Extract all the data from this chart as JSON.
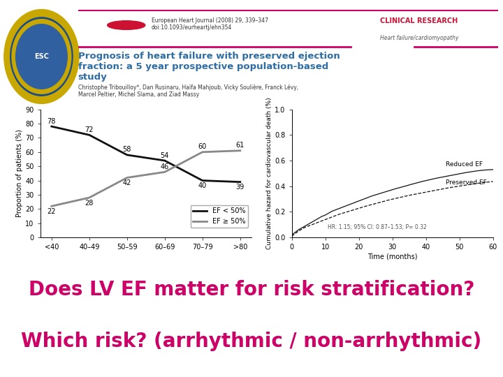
{
  "bg_color": "#ffffff",
  "header_line_color": "#cc0066",
  "journal_text": "European Heart Journal (2008) 29, 339–347\ndoi:10.1093/eurheartj/ehn354",
  "clinical_research_text": "CLINICAL RESEARCH\nHeart failure/cardiomyopathy",
  "title_text": "Prognosis of heart failure with preserved ejection\nfraction: a 5 year prospective population-based\nstudy",
  "title_color": "#2e6da4",
  "authors_text": "Christophe Tribouilloy*, Dan Rusinaru, Haïfa Mahjoub, Vicky Soulière, Franck Lévy,\nMarcel Peltier, Michel Slama, and Ziad Massy",
  "left_chart": {
    "ylabel": "Proportion of patients (%)",
    "xlabels": [
      "<40",
      "40–49",
      "50–59",
      "60–69",
      "70–79",
      ">80"
    ],
    "ylim": [
      0,
      90
    ],
    "yticks": [
      0,
      10,
      20,
      30,
      40,
      50,
      60,
      70,
      80,
      90
    ],
    "ef_lt50_values": [
      78,
      72,
      58,
      54,
      40,
      39
    ],
    "ef_ge50_values": [
      22,
      28,
      42,
      46,
      60,
      61
    ],
    "ef_lt50_label": "EF < 50%",
    "ef_ge50_label": "EF ≥ 50%",
    "ef_lt50_color": "#111111",
    "ef_ge50_color": "#888888"
  },
  "right_chart": {
    "ylabel": "Cumulative hazard for cardiovascular death (%)",
    "xlabel": "Time (months)",
    "xlim": [
      0,
      60
    ],
    "ylim": [
      0.0,
      1.0
    ],
    "yticks": [
      0.0,
      0.2,
      0.4,
      0.6,
      0.8,
      1.0
    ],
    "xticks": [
      0,
      10,
      20,
      30,
      40,
      50,
      60
    ],
    "reduced_ef_label": "Reduced EF",
    "preserved_ef_label": "Preserved EF",
    "hr_text": "HR: 1.15; 95% CI: 0.87–1.53; P= 0.32",
    "reduced_ef_color": "#111111",
    "preserved_ef_color": "#111111",
    "t_steps": [
      0,
      1,
      2,
      3,
      4,
      5,
      6,
      7,
      8,
      9,
      10,
      11,
      12,
      13,
      14,
      15,
      16,
      17,
      18,
      19,
      20,
      21,
      22,
      23,
      24,
      25,
      26,
      27,
      28,
      29,
      30,
      31,
      32,
      33,
      34,
      35,
      36,
      37,
      38,
      39,
      40,
      41,
      42,
      43,
      44,
      45,
      46,
      47,
      48,
      49,
      50,
      51,
      52,
      53,
      54,
      55,
      56,
      57,
      58,
      59,
      60
    ],
    "reduced_vals": [
      0.02,
      0.04,
      0.06,
      0.075,
      0.09,
      0.105,
      0.12,
      0.135,
      0.15,
      0.165,
      0.175,
      0.19,
      0.205,
      0.215,
      0.225,
      0.235,
      0.245,
      0.255,
      0.265,
      0.275,
      0.285,
      0.295,
      0.305,
      0.315,
      0.325,
      0.333,
      0.341,
      0.349,
      0.357,
      0.365,
      0.373,
      0.381,
      0.388,
      0.395,
      0.402,
      0.41,
      0.417,
      0.424,
      0.431,
      0.438,
      0.444,
      0.45,
      0.456,
      0.462,
      0.467,
      0.472,
      0.477,
      0.482,
      0.487,
      0.492,
      0.497,
      0.502,
      0.507,
      0.511,
      0.515,
      0.519,
      0.522,
      0.525,
      0.527,
      0.529,
      0.53
    ],
    "preserved_vals": [
      0.01,
      0.03,
      0.05,
      0.065,
      0.08,
      0.09,
      0.1,
      0.11,
      0.12,
      0.13,
      0.14,
      0.15,
      0.16,
      0.17,
      0.18,
      0.188,
      0.196,
      0.204,
      0.212,
      0.22,
      0.228,
      0.236,
      0.244,
      0.251,
      0.258,
      0.265,
      0.272,
      0.279,
      0.286,
      0.293,
      0.299,
      0.305,
      0.311,
      0.317,
      0.323,
      0.329,
      0.334,
      0.339,
      0.344,
      0.349,
      0.354,
      0.359,
      0.364,
      0.369,
      0.374,
      0.379,
      0.384,
      0.389,
      0.393,
      0.397,
      0.401,
      0.405,
      0.409,
      0.413,
      0.417,
      0.421,
      0.425,
      0.428,
      0.431,
      0.434,
      0.437
    ]
  },
  "bottom_line1": "Does LV EF matter for risk stratification?",
  "bottom_line2": "Which risk? (arrhythmic / non-arrhythmic)",
  "bottom_text_color": "#cc0066",
  "bottom_fontsize": 20
}
